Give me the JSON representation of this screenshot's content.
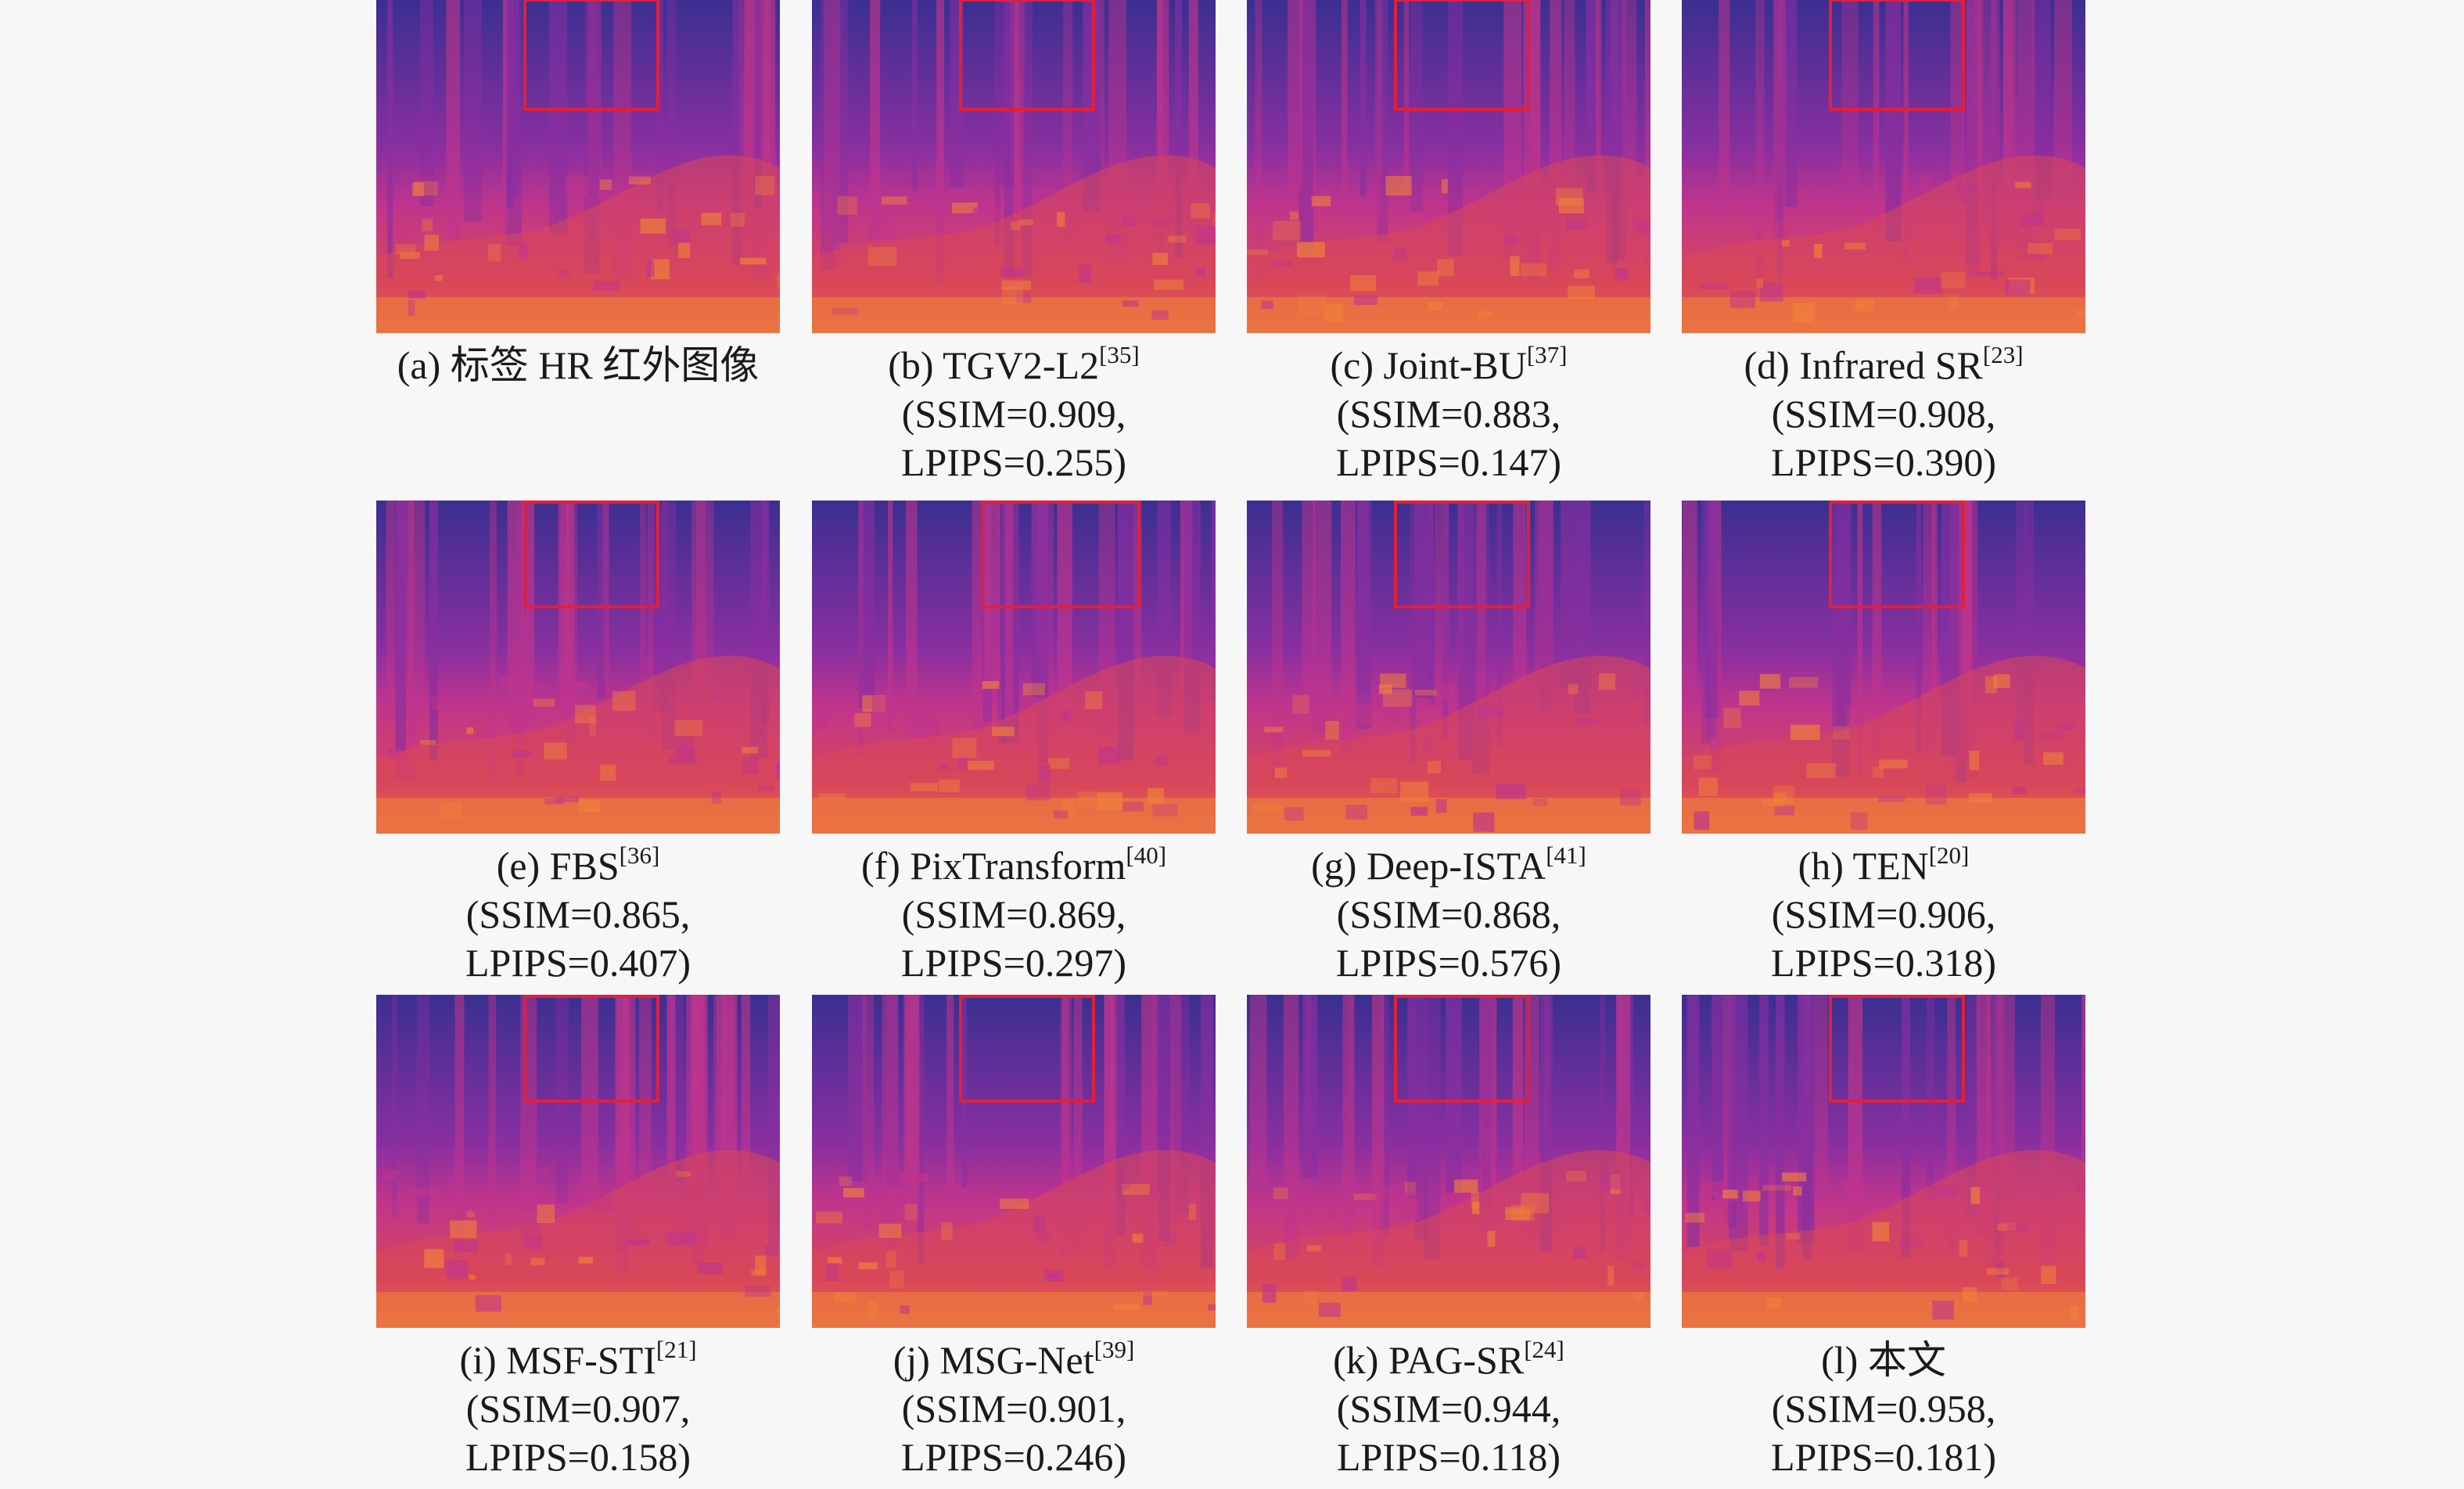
{
  "figure": {
    "panels": [
      {
        "label": "(a) 标签 HR 红外图像",
        "ref": "",
        "ssim_line": "",
        "lpips_line": "",
        "variant": 0
      },
      {
        "label": "(b) TGV2-L2",
        "ref": "[35]",
        "ssim_line": "(SSIM=0.909,",
        "lpips_line": "LPIPS=0.255)",
        "variant": 1
      },
      {
        "label": "(c) Joint-BU",
        "ref": "[37]",
        "ssim_line": "(SSIM=0.883,",
        "lpips_line": "LPIPS=0.147)",
        "variant": 2
      },
      {
        "label": "(d) Infrared SR",
        "ref": "[23]",
        "ssim_line": "(SSIM=0.908,",
        "lpips_line": "LPIPS=0.390)",
        "variant": 3
      },
      {
        "label": "(e) FBS",
        "ref": "[36]",
        "ssim_line": "(SSIM=0.865,",
        "lpips_line": "LPIPS=0.407)",
        "variant": 4
      },
      {
        "label": "(f) PixTransform",
        "ref": "[40]",
        "ssim_line": "(SSIM=0.869,",
        "lpips_line": "LPIPS=0.297)",
        "variant": 5
      },
      {
        "label": "(g) Deep-ISTA",
        "ref": "[41]",
        "ssim_line": "(SSIM=0.868,",
        "lpips_line": "LPIPS=0.576)",
        "variant": 6
      },
      {
        "label": "(h) TEN",
        "ref": "[20]",
        "ssim_line": "(SSIM=0.906,",
        "lpips_line": "LPIPS=0.318)",
        "variant": 7
      },
      {
        "label": "(i) MSF-STI",
        "ref": "[21]",
        "ssim_line": "(SSIM=0.907,",
        "lpips_line": "LPIPS=0.158)",
        "variant": 8
      },
      {
        "label": "(j) MSG-Net",
        "ref": "[39]",
        "ssim_line": "(SSIM=0.901,",
        "lpips_line": "LPIPS=0.246)",
        "variant": 9
      },
      {
        "label": "(k) PAG-SR",
        "ref": "[24]",
        "ssim_line": "(SSIM=0.944,",
        "lpips_line": "LPIPS=0.118)",
        "variant": 10
      },
      {
        "label": "(l) 本文",
        "ref": "",
        "ssim_line": "(SSIM=0.958,",
        "lpips_line": "LPIPS=0.181)",
        "variant": 11
      }
    ],
    "colors": {
      "sky": "#3b2f91",
      "tree_mid": "#8a2fa0",
      "tree_warm": "#c0358c",
      "ground": "#d9475a",
      "ground_hot": "#f0813a",
      "roi_box": "#e0203a"
    }
  }
}
